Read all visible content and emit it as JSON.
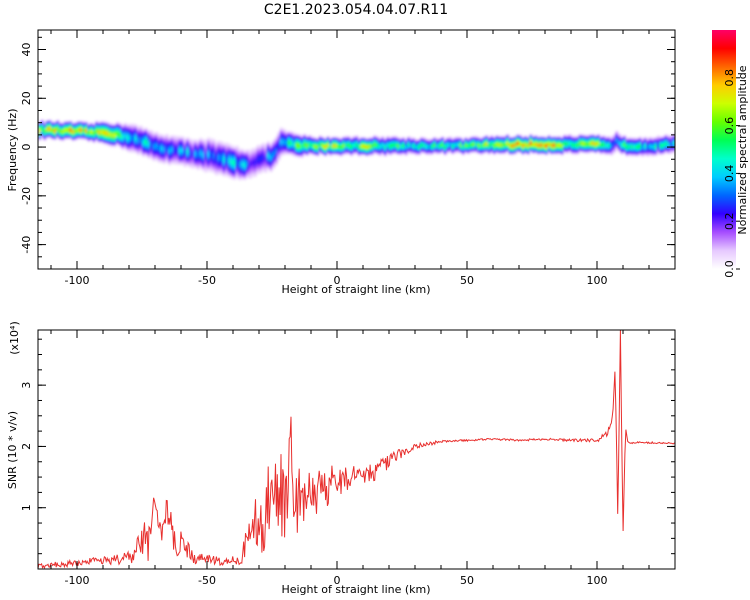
{
  "figure": {
    "title": "C2E1.2023.054.04.07.R11"
  },
  "colors": {
    "snr_line": "#e8302e",
    "frame": "#000000",
    "colormap": [
      "#ffffff",
      "#e6c9ff",
      "#a64dff",
      "#3300ff",
      "#0066ff",
      "#00ccff",
      "#00ffcc",
      "#00ff55",
      "#66ff00",
      "#ccff00",
      "#ffcc00",
      "#ff6600",
      "#ff0000",
      "#ff0066"
    ]
  },
  "chart_data": [
    {
      "type": "heatmap",
      "title": "C2E1.2023.054.04.07.R11",
      "xlabel": "Height of straight line (km)",
      "ylabel": "Frequency (Hz)",
      "xlim": [
        -115,
        130
      ],
      "ylim": [
        -50,
        48
      ],
      "x_ticks": [
        -100,
        -50,
        0,
        50,
        100
      ],
      "x_tick_labels": [
        "-100",
        "-50",
        "0",
        "50",
        "100"
      ],
      "y_ticks": [
        -40,
        -20,
        0,
        20,
        40
      ],
      "y_tick_labels": [
        "-40",
        "-20",
        "0",
        "20",
        "40"
      ],
      "ridge": {
        "x": [
          -115,
          -110,
          -105,
          -100,
          -95,
          -90,
          -85,
          -80,
          -75,
          -70,
          -65,
          -60,
          -55,
          -50,
          -45,
          -40,
          -35,
          -30,
          -25,
          -22,
          -20,
          -15,
          -10,
          -5,
          0,
          5,
          10,
          15,
          20,
          30,
          40,
          50,
          60,
          70,
          80,
          90,
          95,
          100,
          105,
          107,
          110,
          115,
          120,
          125,
          130
        ],
        "y": [
          7,
          7,
          6.5,
          6.5,
          6,
          6,
          5,
          4,
          2,
          0,
          -1,
          -2,
          -2.5,
          -3.5,
          -5,
          -6.5,
          -7,
          -5,
          -3.5,
          2,
          1.5,
          0.5,
          0.5,
          0.5,
          0.5,
          0.5,
          0.5,
          0.5,
          0.5,
          0.5,
          0.5,
          0.5,
          1,
          1,
          1,
          1,
          1,
          1,
          0,
          3,
          0.5,
          0.5,
          0.5,
          1,
          1
        ],
        "amplitude": [
          0.75,
          0.8,
          0.85,
          0.8,
          0.75,
          0.8,
          0.7,
          0.45,
          0.4,
          0.35,
          0.4,
          0.35,
          0.3,
          0.35,
          0.3,
          0.45,
          0.3,
          0.3,
          0.3,
          0.35,
          0.5,
          0.6,
          0.65,
          0.7,
          0.7,
          0.6,
          0.7,
          0.6,
          0.6,
          0.5,
          0.5,
          0.6,
          0.7,
          0.85,
          0.9,
          0.6,
          0.7,
          0.8,
          0.35,
          0.4,
          0.6,
          0.5,
          0.45,
          0.4,
          0.4
        ],
        "spread": [
          4,
          4,
          4,
          4,
          4,
          5,
          5,
          6,
          6,
          6,
          6,
          6,
          6,
          7,
          7,
          7,
          6,
          6,
          6,
          6,
          5,
          5,
          4,
          4,
          4,
          4,
          4,
          4,
          4,
          3.5,
          3.5,
          3.5,
          4,
          4,
          4,
          4,
          4,
          4,
          4,
          4,
          4,
          4,
          4,
          4,
          4
        ]
      },
      "colorbar": {
        "label": "Normalized spectral amplitude",
        "range": [
          0,
          1
        ],
        "ticks": [
          0.0,
          0.2,
          0.4,
          0.6,
          0.8
        ],
        "tick_labels": [
          "0.0",
          "0.2",
          "0.4",
          "0.6",
          "0.8"
        ]
      }
    },
    {
      "type": "line",
      "xlabel": "Height of straight line (km)",
      "ylabel": "SNR (10 * v/v)",
      "multiplier_label": "(x10⁴)",
      "xlim": [
        -115,
        130
      ],
      "ylim": [
        0,
        3.9
      ],
      "x_ticks": [
        -100,
        -50,
        0,
        50,
        100
      ],
      "x_tick_labels": [
        "-100",
        "-50",
        "0",
        "50",
        "100"
      ],
      "y_ticks": [
        1,
        2,
        3
      ],
      "y_tick_labels": [
        "1",
        "2",
        "3"
      ],
      "series": [
        {
          "x": [
            -115,
            -105,
            -95,
            -85,
            -78,
            -75,
            -72,
            -70,
            -68,
            -65,
            -62,
            -60,
            -55,
            -50,
            -45,
            -40,
            -37,
            -35,
            -32,
            -30,
            -28,
            -26,
            -24,
            -22,
            -20,
            -18,
            -16,
            -14,
            -12,
            -10,
            -8,
            -6,
            -4,
            -2,
            0,
            5,
            10,
            15,
            20,
            25,
            30,
            40,
            50,
            60,
            70,
            80,
            90,
            100,
            104,
            106,
            107,
            108,
            109,
            110,
            111,
            112,
            115,
            120,
            130
          ],
          "y": [
            0.05,
            0.08,
            0.12,
            0.15,
            0.2,
            0.5,
            0.4,
            1.15,
            0.55,
            0.9,
            0.3,
            0.5,
            0.15,
            0.18,
            0.12,
            0.15,
            0.12,
            0.4,
            0.7,
            0.9,
            0.5,
            1.35,
            0.9,
            1.6,
            0.9,
            1.9,
            1.0,
            1.2,
            1.1,
            1.3,
            1.2,
            1.4,
            1.3,
            1.45,
            1.4,
            1.5,
            1.55,
            1.6,
            1.75,
            1.9,
            2.0,
            2.08,
            2.1,
            2.12,
            2.1,
            2.12,
            2.1,
            2.1,
            2.2,
            2.5,
            3.3,
            0.8,
            3.9,
            0.5,
            2.3,
            2.05,
            2.07,
            2.06,
            2.05
          ],
          "noise": [
            0.04,
            0.05,
            0.06,
            0.08,
            0.1,
            0.3,
            0.3,
            0.4,
            0.3,
            0.3,
            0.2,
            0.2,
            0.08,
            0.08,
            0.06,
            0.06,
            0.08,
            0.25,
            0.35,
            0.5,
            0.6,
            0.7,
            0.8,
            0.8,
            0.8,
            0.8,
            0.6,
            0.5,
            0.4,
            0.35,
            0.35,
            0.35,
            0.3,
            0.3,
            0.25,
            0.2,
            0.15,
            0.15,
            0.12,
            0.08,
            0.05,
            0.02,
            0.015,
            0.015,
            0.015,
            0.015,
            0.02,
            0.03,
            0.05,
            0.05,
            0.05,
            0.05,
            0.05,
            0.05,
            0.05,
            0.02,
            0.015,
            0.015,
            0.015
          ]
        }
      ]
    }
  ]
}
